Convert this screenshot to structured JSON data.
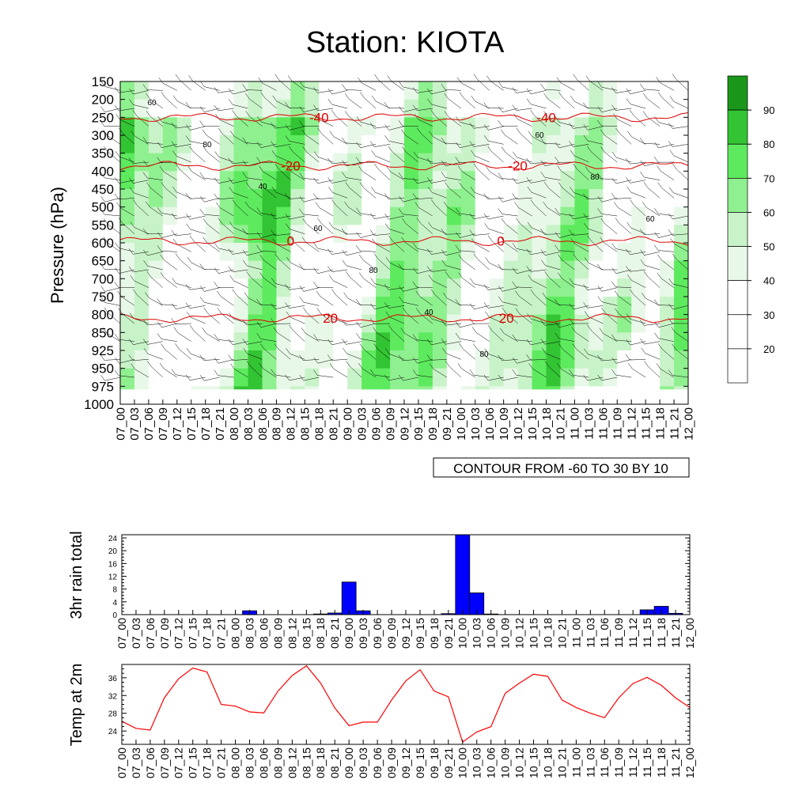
{
  "title": "Station: KIOTA",
  "time_labels": [
    "07_00",
    "07_03",
    "07_06",
    "07_09",
    "07_12",
    "07_15",
    "07_18",
    "07_21",
    "08_00",
    "08_03",
    "08_06",
    "08_09",
    "08_12",
    "08_15",
    "08_18",
    "08_21",
    "09_00",
    "09_03",
    "09_06",
    "09_09",
    "09_12",
    "09_15",
    "09_18",
    "09_21",
    "10_00",
    "10_03",
    "10_06",
    "10_09",
    "10_12",
    "10_15",
    "10_18",
    "10_21",
    "11_00",
    "11_03",
    "11_06",
    "11_09",
    "11_12",
    "11_15",
    "11_18",
    "11_21",
    "12_00"
  ],
  "chart_data": [
    {
      "type": "heatmap",
      "name": "relative-humidity-cross-section",
      "ylabel": "Pressure (hPa)",
      "y_ticks": [
        150,
        200,
        250,
        300,
        350,
        400,
        450,
        500,
        550,
        600,
        650,
        700,
        750,
        800,
        850,
        925,
        950,
        975,
        1000
      ],
      "info_label": "CONTOUR FROM -60 TO 30 BY 10",
      "colorbar": {
        "levels": [
          20,
          30,
          40,
          50,
          60,
          70,
          80,
          90
        ],
        "colors": [
          "#ffffff",
          "#ffffff",
          "#ffffff",
          "#e8f8e8",
          "#c8f3c8",
          "#8ff08f",
          "#5eea5e",
          "#33c433",
          "#1a971a"
        ]
      },
      "temperature_contours": [
        {
          "value": "-40",
          "pressure": 250,
          "positions": [
            0.35,
            0.75
          ]
        },
        {
          "value": "-20",
          "pressure": 385,
          "positions": [
            0.3,
            0.7
          ]
        },
        {
          "value": "0",
          "pressure": 595,
          "positions": [
            0.3,
            0.67
          ]
        },
        {
          "value": "20",
          "pressure": 810,
          "positions": [
            0.37,
            0.68
          ]
        }
      ],
      "rh_labels": [
        "60",
        "80",
        "40",
        "60",
        "80",
        "40",
        "80",
        "60",
        "80",
        "60"
      ]
    },
    {
      "type": "bar",
      "name": "3hr-rain-total",
      "ylabel": "3hr rain total",
      "ylim": [
        0,
        25
      ],
      "y_ticks": [
        0,
        4,
        8,
        12,
        16,
        20,
        24
      ],
      "color": "#0000ff",
      "values": [
        0,
        0,
        0,
        0,
        0,
        0,
        0,
        0,
        0,
        1.2,
        0,
        0,
        0,
        0,
        0.2,
        0.5,
        10.2,
        1.2,
        0,
        0,
        0,
        0,
        0,
        0.3,
        25,
        6.8,
        0.2,
        0,
        0,
        0,
        0,
        0,
        0,
        0,
        0,
        0,
        0,
        1.5,
        2.6,
        0.4,
        0
      ]
    },
    {
      "type": "line",
      "name": "temp-at-2m",
      "ylabel": "Temp at 2m",
      "ylim": [
        21,
        39
      ],
      "y_ticks": [
        24,
        28,
        32,
        36
      ],
      "color": "#ff0000",
      "values": [
        26.2,
        24.6,
        24.2,
        31.5,
        35.8,
        38.2,
        37.3,
        30.0,
        29.6,
        28.3,
        28.1,
        33.0,
        36.5,
        38.7,
        34.8,
        29.2,
        25.2,
        26.0,
        26.0,
        31.0,
        35.3,
        37.8,
        33.0,
        31.7,
        21.5,
        23.8,
        25.0,
        32.5,
        34.8,
        36.8,
        36.3,
        31.0,
        29.3,
        28.0,
        27.0,
        31.5,
        34.7,
        36.1,
        34.3,
        31.5,
        29.3
      ]
    }
  ]
}
